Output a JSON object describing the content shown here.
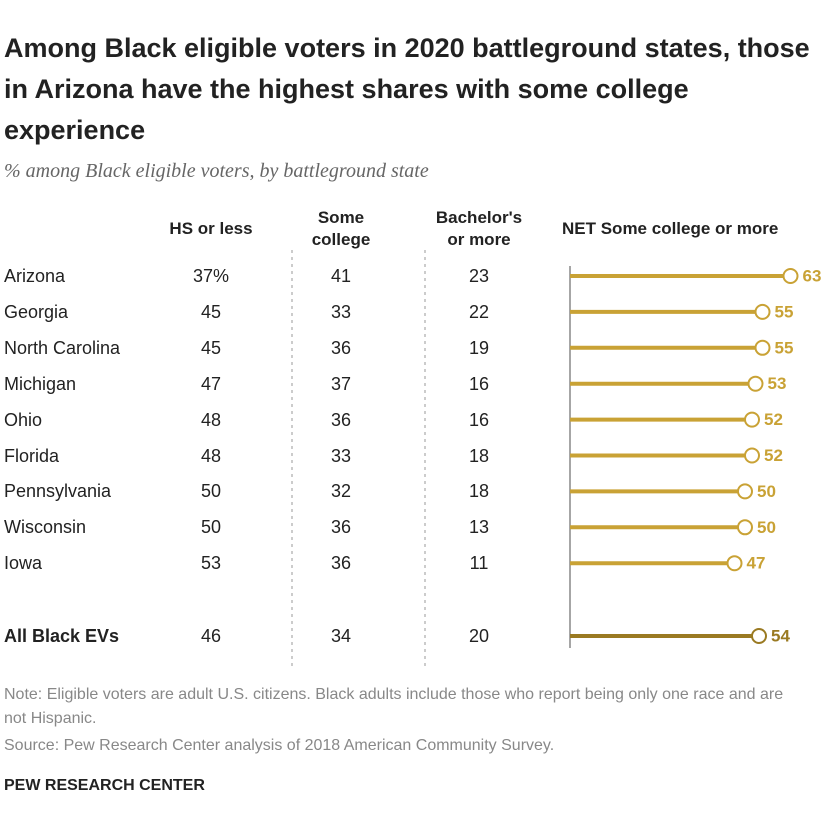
{
  "chart_data": {
    "type": "lollipop",
    "title": "Among Black eligible voters in 2020 battleground states, those in Arizona have the highest shares with some college experience",
    "subtitle": "% among Black eligible voters, by battleground state",
    "categories": [
      "Arizona",
      "Georgia",
      "North Carolina",
      "Michigan",
      "Ohio",
      "Florida",
      "Pennsylvania",
      "Wisconsin",
      "Iowa",
      "All Black EVs"
    ],
    "columns": [
      {
        "name": "HS or less",
        "values": [
          37,
          45,
          45,
          47,
          48,
          48,
          50,
          50,
          53,
          46
        ],
        "value_labels": [
          "37%",
          "45",
          "45",
          "47",
          "48",
          "48",
          "50",
          "50",
          "53",
          "46"
        ]
      },
      {
        "name": "Some college",
        "values": [
          41,
          33,
          36,
          37,
          36,
          33,
          32,
          36,
          36,
          34
        ]
      },
      {
        "name": "Bachelor's or more",
        "values": [
          23,
          22,
          19,
          16,
          16,
          18,
          18,
          13,
          11,
          20
        ]
      }
    ],
    "series": [
      {
        "name": "NET Some college or more",
        "values": [
          63,
          55,
          55,
          53,
          52,
          52,
          50,
          50,
          47,
          54
        ],
        "colors": [
          "#c9a235",
          "#c9a235",
          "#c9a235",
          "#c9a235",
          "#c9a235",
          "#c9a235",
          "#c9a235",
          "#c9a235",
          "#c9a235",
          "#9a7a22"
        ]
      }
    ],
    "xlim": [
      0,
      70
    ],
    "note": "Note: Eligible voters are adult U.S. citizens. Black adults include those who report being only one race and are not Hispanic.",
    "source": "Source: Pew Research Center analysis of 2018 American Community Survey.",
    "footer": "PEW RESEARCH CENTER"
  }
}
